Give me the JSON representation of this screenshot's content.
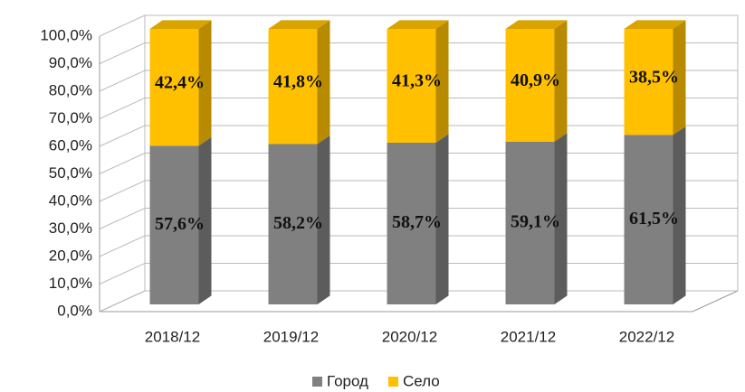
{
  "chart_data": {
    "type": "bar3d_stacked",
    "categories": [
      "2018/12",
      "2019/12",
      "2020/12",
      "2021/12",
      "2022/12"
    ],
    "series": [
      {
        "name": "Город",
        "color": "#808080",
        "values": [
          57.6,
          58.2,
          58.7,
          59.1,
          61.5
        ],
        "value_labels": [
          "57,6%",
          "58,2%",
          "58,7%",
          "59,1%",
          "61,5%"
        ]
      },
      {
        "name": "Село",
        "color": "#ffc000",
        "values": [
          42.4,
          41.8,
          41.3,
          40.9,
          38.5
        ],
        "value_labels": [
          "42,4%",
          "41,8%",
          "41,3%",
          "40,9%",
          "38,5%"
        ]
      }
    ],
    "ylim": [
      0,
      100
    ],
    "yticks": [
      {
        "value": 0,
        "label": "0,0%"
      },
      {
        "value": 10,
        "label": "10,0%"
      },
      {
        "value": 20,
        "label": "20,0%"
      },
      {
        "value": 30,
        "label": "30,0%"
      },
      {
        "value": 40,
        "label": "40,0%"
      },
      {
        "value": 50,
        "label": "50,0%"
      },
      {
        "value": 60,
        "label": "60,0%"
      },
      {
        "value": 70,
        "label": "70,0%"
      },
      {
        "value": 80,
        "label": "80,0%"
      },
      {
        "value": 90,
        "label": "90,0%"
      },
      {
        "value": 100,
        "label": "100,0%"
      }
    ],
    "grid": true,
    "legend": "bottom"
  }
}
